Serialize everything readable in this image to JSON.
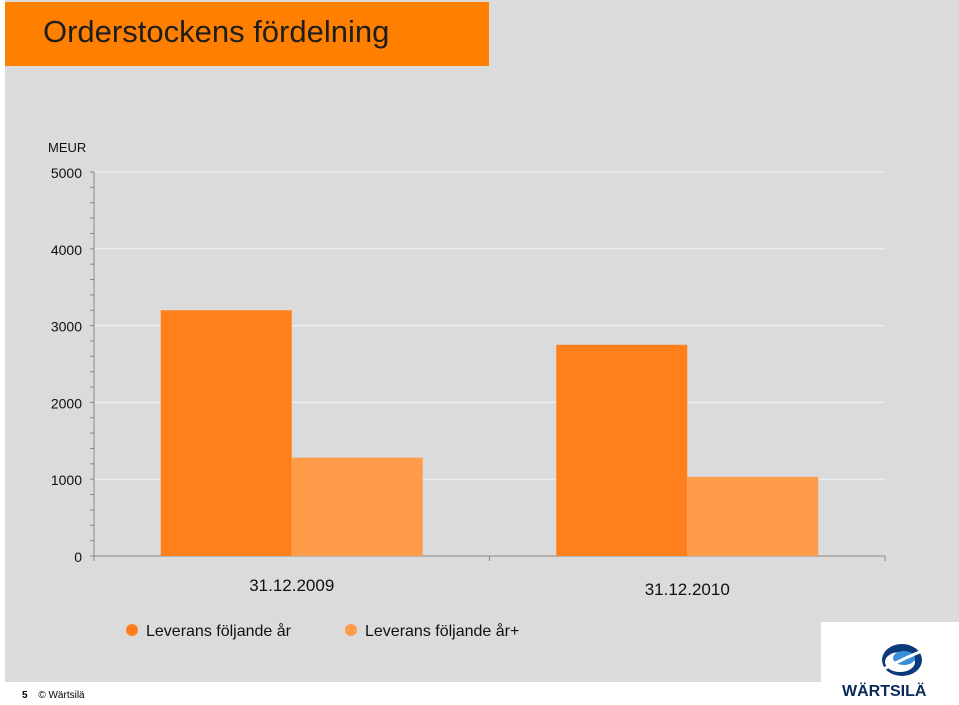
{
  "slide": {
    "title": "Orderstockens fördelning",
    "page_number": "5",
    "copyright": "© Wärtsilä",
    "logo_text": "WÄRTSILÄ"
  },
  "colors": {
    "title_bg": "#ff7f00",
    "series_1": "#ff7f1c",
    "series_2": "#ff9c4a",
    "slide_bg": "#dbdbdb"
  },
  "chart_data": {
    "type": "bar",
    "ylabel": "MEUR",
    "ylim": [
      0,
      5000
    ],
    "yticks": [
      0,
      1000,
      2000,
      3000,
      4000,
      5000
    ],
    "grid": true,
    "legend_position": "bottom",
    "categories": [
      "31.12.2009",
      "31.12.2010"
    ],
    "series": [
      {
        "name": "Leverans följande år",
        "values": [
          3200,
          2750
        ]
      },
      {
        "name": "Leverans följande år+",
        "values": [
          1280,
          1030
        ]
      }
    ]
  }
}
